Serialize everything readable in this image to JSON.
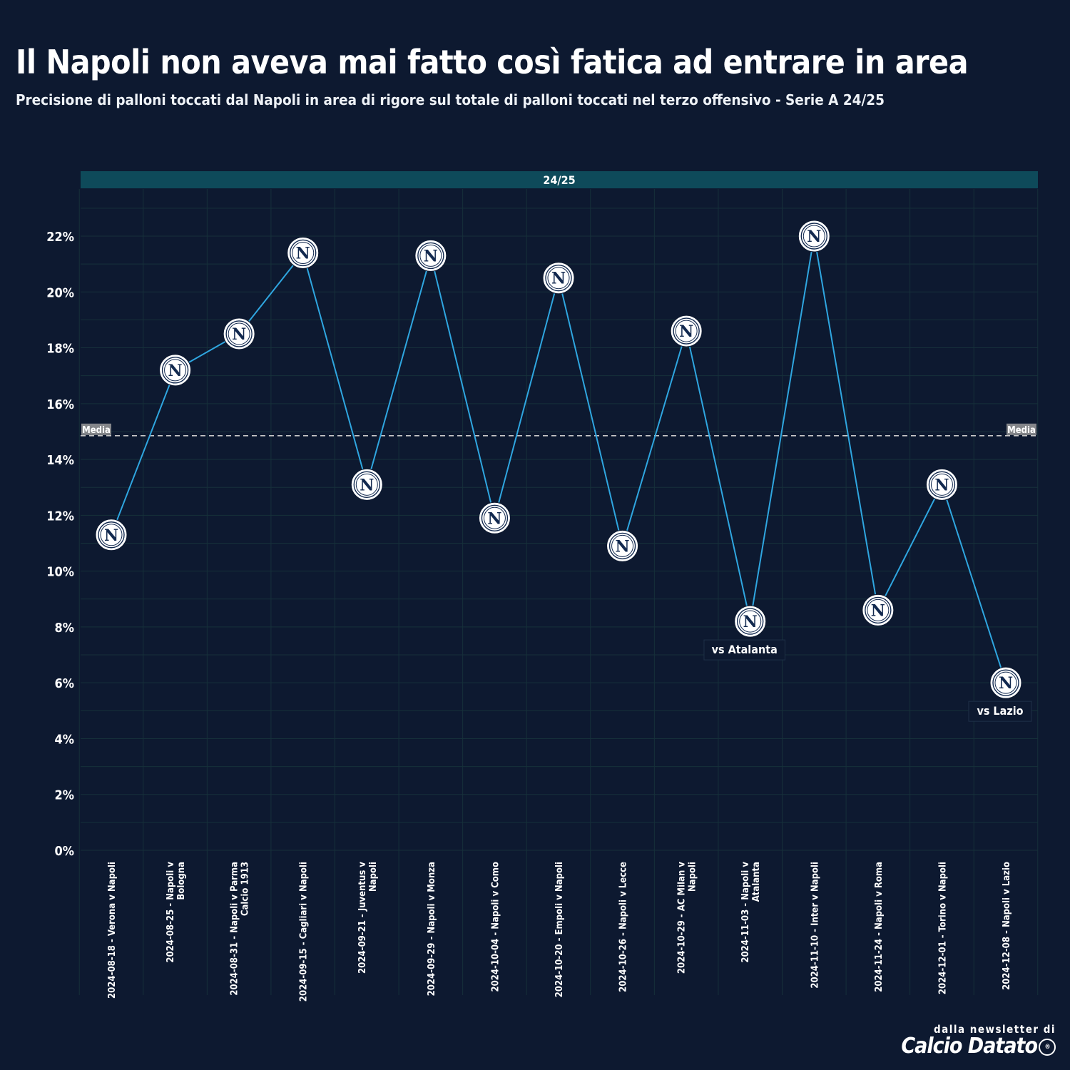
{
  "title": "Il Napoli non aveva mai fatto così fatica ad entrare in area",
  "subtitle": "Precisione di palloni toccati dal Napoli in area di rigore sul totale di palloni toccati nel terzo offensivo  - Serie A 24/25",
  "footer": {
    "line1": "dalla newsletter di",
    "brand": "Calcio Datato",
    "brand_mark": "®"
  },
  "chart_data": {
    "type": "line",
    "facet_label": "24/25",
    "categories": [
      "2024-08-18 - Verona v Napoli",
      "2024-08-25 - Napoli v Bologna",
      "2024-08-31 - Napoli v Parma Calcio 1913",
      "2024-09-15 - Cagliari v Napoli",
      "2024-09-21 - Juventus v Napoli",
      "2024-09-29 - Napoli v Monza",
      "2024-10-04 - Napoli v Como",
      "2024-10-20 - Empoli v Napoli",
      "2024-10-26 - Napoli v Lecce",
      "2024-10-29 - AC Milan v Napoli",
      "2024-11-03 - Napoli v Atalanta",
      "2024-11-10 - Inter v Napoli",
      "2024-11-24 - Napoli v Roma",
      "2024-12-01 - Torino v Napoli",
      "2024-12-08 - Napoli v Lazio"
    ],
    "tick_lines": [
      [
        "2024-08-18 - Verona v Napoli"
      ],
      [
        "2024-08-25 - Napoli v",
        "Bologna"
      ],
      [
        "2024-08-31 - Napoli v Parma",
        "Calcio 1913"
      ],
      [
        "2024-09-15 - Cagliari v Napoli"
      ],
      [
        "2024-09-21 - Juventus v",
        "Napoli"
      ],
      [
        "2024-09-29 - Napoli v Monza"
      ],
      [
        "2024-10-04 - Napoli v Como"
      ],
      [
        "2024-10-20 - Empoli v Napoli"
      ],
      [
        "2024-10-26 - Napoli v Lecce"
      ],
      [
        "2024-10-29 - AC Milan v",
        "Napoli"
      ],
      [
        "2024-11-03 - Napoli v",
        "Atalanta"
      ],
      [
        "2024-11-10 - Inter v Napoli"
      ],
      [
        "2024-11-24 - Napoli v Roma"
      ],
      [
        "2024-12-01 - Torino v Napoli"
      ],
      [
        "2024-12-08 - Napoli v Lazio"
      ]
    ],
    "values": [
      11.3,
      17.2,
      18.5,
      21.4,
      13.1,
      21.3,
      11.9,
      20.5,
      10.9,
      18.6,
      8.2,
      22.0,
      8.6,
      13.1,
      6.0
    ],
    "unit": "%",
    "ylim": [
      0,
      23.5
    ],
    "yticks": [
      0,
      2,
      4,
      6,
      8,
      10,
      12,
      14,
      16,
      18,
      20,
      22
    ],
    "ytick_labels": [
      "0%",
      "2%",
      "4%",
      "6%",
      "8%",
      "10%",
      "12%",
      "14%",
      "16%",
      "18%",
      "20%",
      "22%"
    ],
    "mean": 14.85,
    "mean_label": "Media",
    "marker_letter": "N",
    "annotations": [
      {
        "index": 10,
        "text": "vs Atalanta"
      },
      {
        "index": 14,
        "text": "vs Lazio"
      }
    ],
    "grid": true,
    "colors": {
      "background": "#0d1930",
      "line": "#2fa6e0",
      "facet": "#0e4a5a",
      "grid": "#16303a",
      "mean_line": "#c8c8c8",
      "marker_fill": "#ffffff",
      "marker_ink": "#12294f"
    }
  }
}
